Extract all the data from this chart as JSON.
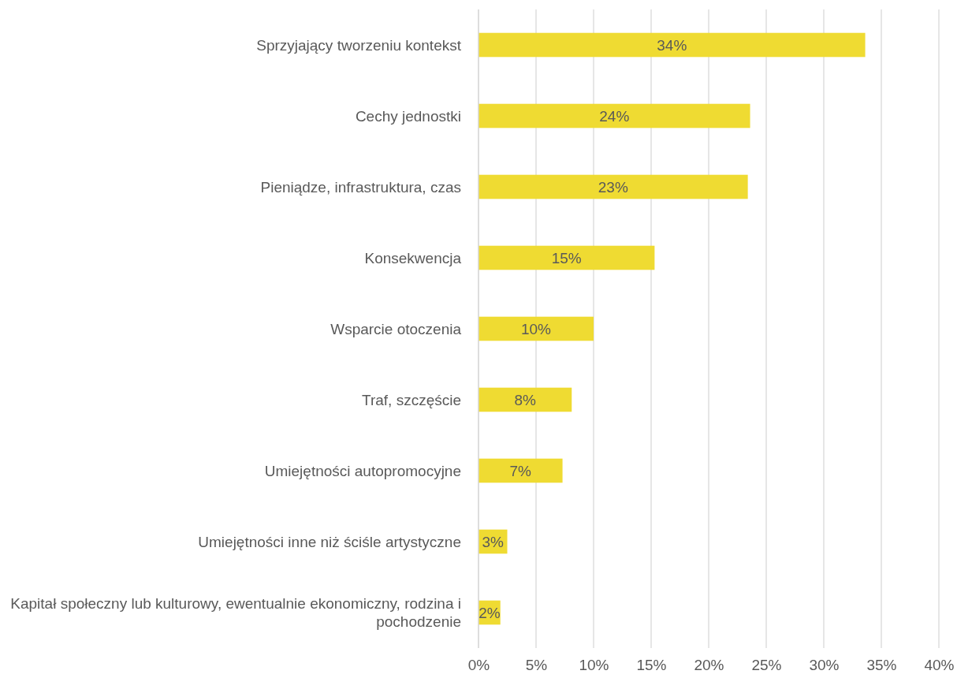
{
  "chart_data": {
    "type": "bar",
    "orientation": "horizontal",
    "categories": [
      "Sprzyjający tworzeniu kontekst",
      "Cechy jednostki",
      "Pieniądze, infrastruktura, czas",
      "Konsekwencja",
      "Wsparcie otoczenia",
      "Traf, szczęście",
      "Umiejętności autopromocyjne",
      "Umiejętności inne niż ściśle artystyczne",
      "Kapitał społeczny lub kulturowy, ewentualnie ekonomiczny, rodzina i pochodzenie"
    ],
    "values": [
      33.6,
      23.6,
      23.4,
      15.3,
      10,
      8.1,
      7.3,
      2.5,
      1.9
    ],
    "value_labels": [
      "34%",
      "24%",
      "23%",
      "15%",
      "10%",
      "8%",
      "7%",
      "3%",
      "2%"
    ],
    "color": "#efdb32",
    "xlim": [
      0,
      40
    ],
    "xticks": [
      {
        "value": 0,
        "label": "0%"
      },
      {
        "value": 5,
        "label": "5%"
      },
      {
        "value": 10,
        "label": "10%"
      },
      {
        "value": 15,
        "label": "15%"
      },
      {
        "value": 20,
        "label": "20%"
      },
      {
        "value": 25,
        "label": "25%"
      },
      {
        "value": 30,
        "label": "30%"
      },
      {
        "value": 35,
        "label": "35%"
      },
      {
        "value": 40,
        "label": "40%"
      }
    ],
    "grid": "x"
  }
}
